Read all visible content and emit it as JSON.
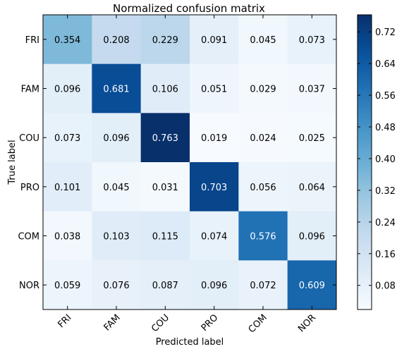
{
  "chart_data": {
    "type": "heatmap",
    "title": "Normalized confusion matrix",
    "xlabel": "Predicted label",
    "ylabel": "True label",
    "x_categories": [
      "FRI",
      "FAM",
      "COU",
      "PRO",
      "COM",
      "NOR"
    ],
    "y_categories": [
      "FRI",
      "FAM",
      "COU",
      "PRO",
      "COM",
      "NOR"
    ],
    "values": [
      [
        0.354,
        0.208,
        0.229,
        0.091,
        0.045,
        0.073
      ],
      [
        0.096,
        0.681,
        0.106,
        0.051,
        0.029,
        0.037
      ],
      [
        0.073,
        0.096,
        0.763,
        0.019,
        0.024,
        0.025
      ],
      [
        0.101,
        0.045,
        0.031,
        0.703,
        0.056,
        0.064
      ],
      [
        0.038,
        0.103,
        0.115,
        0.074,
        0.576,
        0.096
      ],
      [
        0.059,
        0.076,
        0.087,
        0.096,
        0.072,
        0.609
      ]
    ],
    "value_labels": [
      [
        "0.354",
        "0.208",
        "0.229",
        "0.091",
        "0.045",
        "0.073"
      ],
      [
        "0.096",
        "0.681",
        "0.106",
        "0.051",
        "0.029",
        "0.037"
      ],
      [
        "0.073",
        "0.096",
        "0.763",
        "0.019",
        "0.024",
        "0.025"
      ],
      [
        "0.101",
        "0.045",
        "0.031",
        "0.703",
        "0.056",
        "0.064"
      ],
      [
        "0.038",
        "0.103",
        "0.115",
        "0.074",
        "0.576",
        "0.096"
      ],
      [
        "0.059",
        "0.076",
        "0.087",
        "0.096",
        "0.072",
        "0.609"
      ]
    ],
    "colormap": "Blues",
    "colorbar": {
      "range": [
        0.019,
        0.763
      ],
      "ticks": [
        0.08,
        0.16,
        0.24,
        0.32,
        0.4,
        0.48,
        0.56,
        0.64,
        0.72
      ],
      "tick_labels": [
        "0.08",
        "0.16",
        "0.24",
        "0.32",
        "0.40",
        "0.48",
        "0.56",
        "0.64",
        "0.72"
      ]
    },
    "grid": false,
    "legend": "none"
  }
}
